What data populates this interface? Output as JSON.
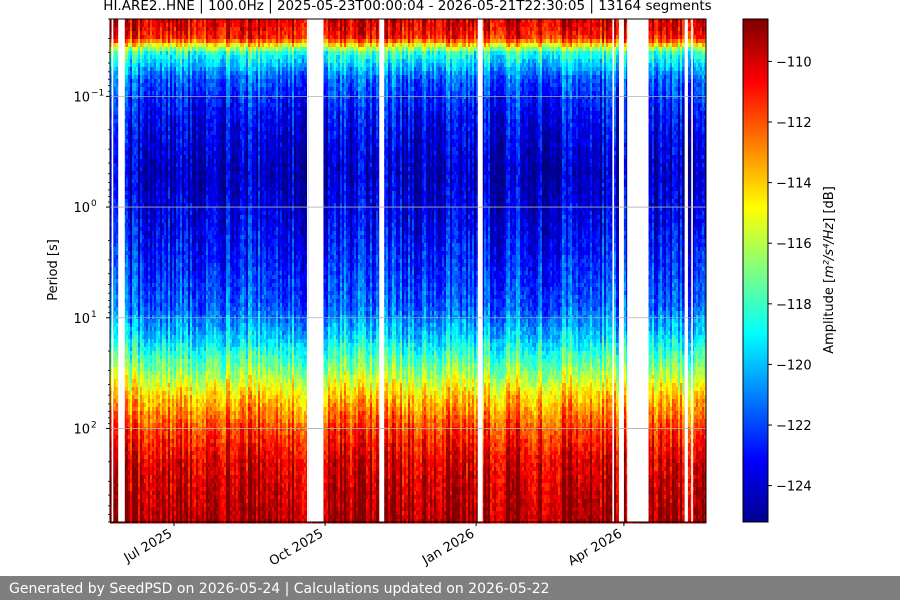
{
  "chart_data": {
    "type": "heatmap",
    "title": "HI.ARE2..HNE | 100.0Hz | 2025-05-23T00:00:04 - 2026-05-21T22:30:05 | 13164 segments",
    "ylabel": "Period [s]",
    "y_scale": "log",
    "y_inverted": true,
    "y_range": [
      0.02,
      700
    ],
    "y_ticks": [
      {
        "value": 0.1,
        "base": "10",
        "exp": "−1"
      },
      {
        "value": 1,
        "base": "10",
        "exp": "0"
      },
      {
        "value": 10,
        "base": "10",
        "exp": "1"
      },
      {
        "value": 100,
        "base": "10",
        "exp": "2"
      }
    ],
    "x_range": [
      "2025-05-23",
      "2026-05-21"
    ],
    "x_ticks": [
      {
        "date": "2025-07-01",
        "label": "Jul 2025"
      },
      {
        "date": "2025-10-01",
        "label": "Oct 2025"
      },
      {
        "date": "2026-01-01",
        "label": "Jan 2026"
      },
      {
        "date": "2026-04-01",
        "label": "Apr 2026"
      }
    ],
    "grid": true,
    "colormap": "jet",
    "colorbar": {
      "label_prefix": "Amplitude [",
      "label_unit": "m²/s⁴/Hz",
      "label_suffix": "] [dB]",
      "range": [
        -125.2,
        -108.6
      ],
      "ticks": [
        -110,
        -112,
        -114,
        -116,
        -118,
        -120,
        -122,
        -124
      ],
      "tick_labels": [
        "−110",
        "−112",
        "−114",
        "−116",
        "−118",
        "−120",
        "−122",
        "−124"
      ]
    },
    "data_gaps": [
      [
        "2025-05-24",
        "2025-05-25"
      ],
      [
        "2025-05-28",
        "2025-06-01"
      ],
      [
        "2025-09-20",
        "2025-09-21"
      ],
      [
        "2025-09-21",
        "2025-09-30"
      ],
      [
        "2025-11-03",
        "2025-11-06"
      ],
      [
        "2026-01-02",
        "2026-01-05"
      ],
      [
        "2026-03-25",
        "2026-03-26"
      ],
      [
        "2026-03-29",
        "2026-04-01"
      ],
      [
        "2026-04-03",
        "2026-04-16"
      ],
      [
        "2026-05-08",
        "2026-05-10"
      ],
      [
        "2026-05-12",
        "2026-05-13"
      ]
    ],
    "amplitude_profile": [
      {
        "period": 0.022,
        "db": -110
      },
      {
        "period": 0.03,
        "db": -111
      },
      {
        "period": 0.04,
        "db": -118
      },
      {
        "period": 0.07,
        "db": -121.5
      },
      {
        "period": 0.15,
        "db": -123
      },
      {
        "period": 0.5,
        "db": -124
      },
      {
        "period": 1,
        "db": -123.5
      },
      {
        "period": 3,
        "db": -122.5
      },
      {
        "period": 8,
        "db": -121.5
      },
      {
        "period": 15,
        "db": -119.5
      },
      {
        "period": 30,
        "db": -116.5
      },
      {
        "period": 50,
        "db": -114
      },
      {
        "period": 100,
        "db": -111.5
      },
      {
        "period": 200,
        "db": -110
      },
      {
        "period": 700,
        "db": -109
      }
    ]
  },
  "footer": {
    "text": "Generated by SeedPSD on 2026-05-24 | Calculations updated on 2026-05-22"
  }
}
